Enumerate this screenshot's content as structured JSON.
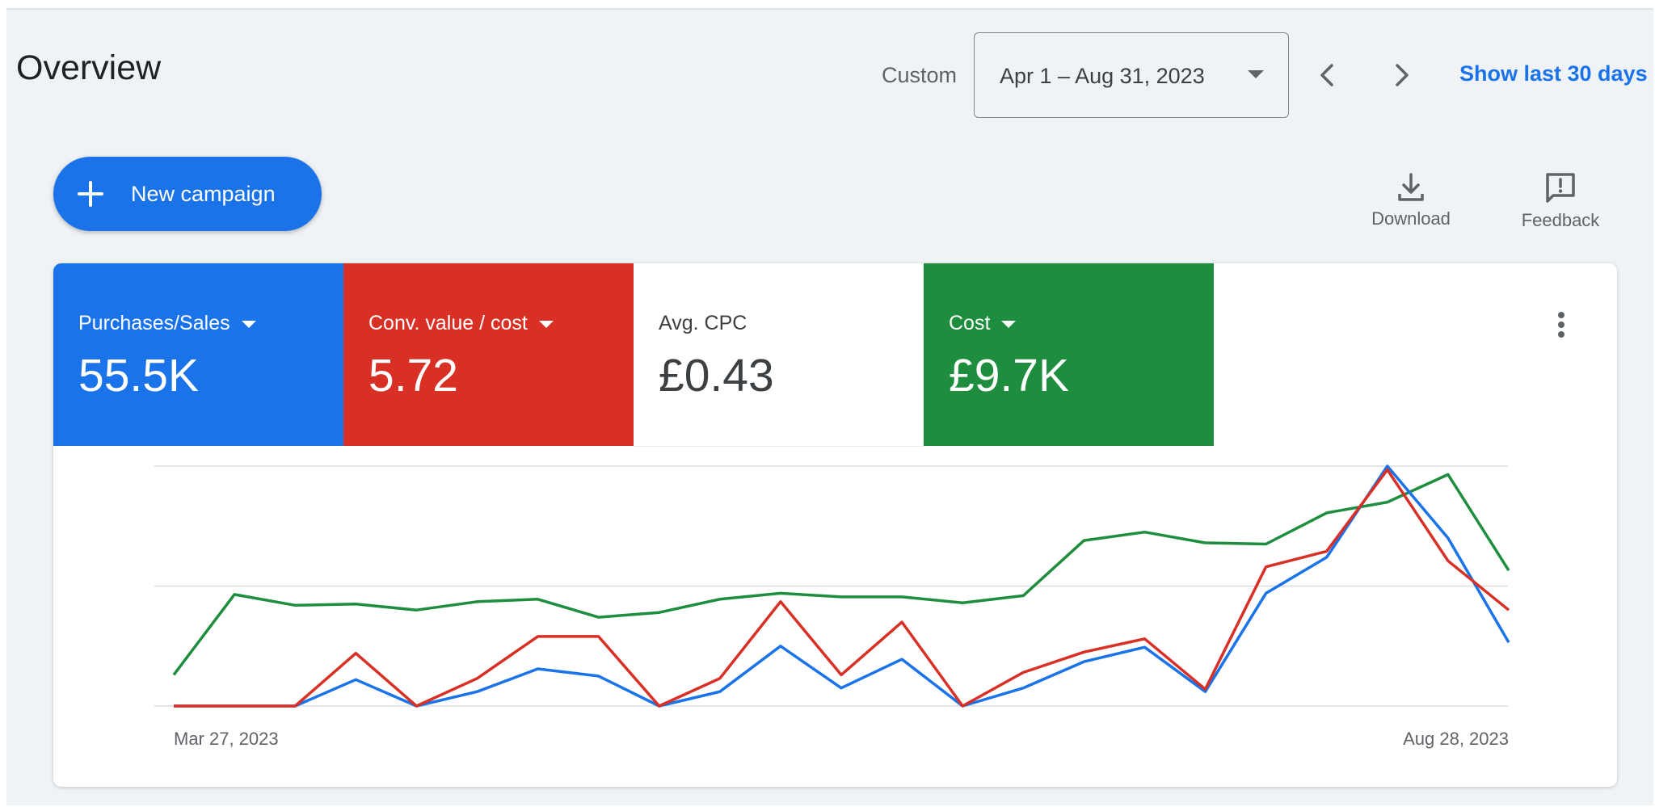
{
  "header": {
    "title": "Overview",
    "range_type": "Custom",
    "date_range": "Apr 1 – Aug 31, 2023",
    "show_last": "Show last 30 days"
  },
  "toolbar": {
    "new_campaign": "New campaign",
    "download": "Download",
    "feedback": "Feedback"
  },
  "metrics": [
    {
      "label": "Purchases/Sales",
      "value": "55.5K",
      "color": "#1a73e8",
      "has_dropdown": true
    },
    {
      "label": "Conv. value / cost",
      "value": "5.72",
      "color": "#d93025",
      "has_dropdown": true
    },
    {
      "label": "Avg. CPC",
      "value": "£0.43",
      "color": "#ffffff",
      "has_dropdown": false
    },
    {
      "label": "Cost",
      "value": "£9.7K",
      "color": "#1e8e3e",
      "has_dropdown": true
    }
  ],
  "chart_data": {
    "type": "line",
    "x": [
      "Mar 27, 2023",
      "",
      "",
      "",
      "",
      "",
      "",
      "",
      "",
      "",
      "",
      "",
      "",
      "",
      "",
      "",
      "",
      "",
      "",
      "",
      "",
      "",
      "Aug 28, 2023"
    ],
    "x_tick_labels": [
      "Mar 27, 2023",
      "Aug 28, 2023"
    ],
    "y_range": [
      0,
      2
    ],
    "grid": true,
    "legend": "metric tiles above chart",
    "series": [
      {
        "name": "Purchases/Sales",
        "color": "#1a73e8",
        "values": [
          0,
          0,
          0,
          0.22,
          0,
          0.12,
          0.31,
          0.25,
          0,
          0.12,
          0.5,
          0.15,
          0.39,
          0,
          0.15,
          0.37,
          0.49,
          0.12,
          0.94,
          1.24,
          2.0,
          1.4,
          0.53
        ]
      },
      {
        "name": "Conv. value / cost",
        "color": "#d93025",
        "values": [
          0,
          0,
          0,
          0.44,
          0,
          0.23,
          0.58,
          0.58,
          0,
          0.23,
          0.87,
          0.26,
          0.7,
          0,
          0.28,
          0.45,
          0.56,
          0.14,
          1.16,
          1.29,
          1.97,
          1.21,
          0.8
        ]
      },
      {
        "name": "Cost",
        "color": "#1e8e3e",
        "values": [
          0.26,
          0.93,
          0.84,
          0.85,
          0.8,
          0.87,
          0.89,
          0.74,
          0.78,
          0.89,
          0.94,
          0.91,
          0.91,
          0.86,
          0.92,
          1.38,
          1.45,
          1.36,
          1.35,
          1.61,
          1.7,
          1.93,
          1.13
        ]
      }
    ]
  }
}
